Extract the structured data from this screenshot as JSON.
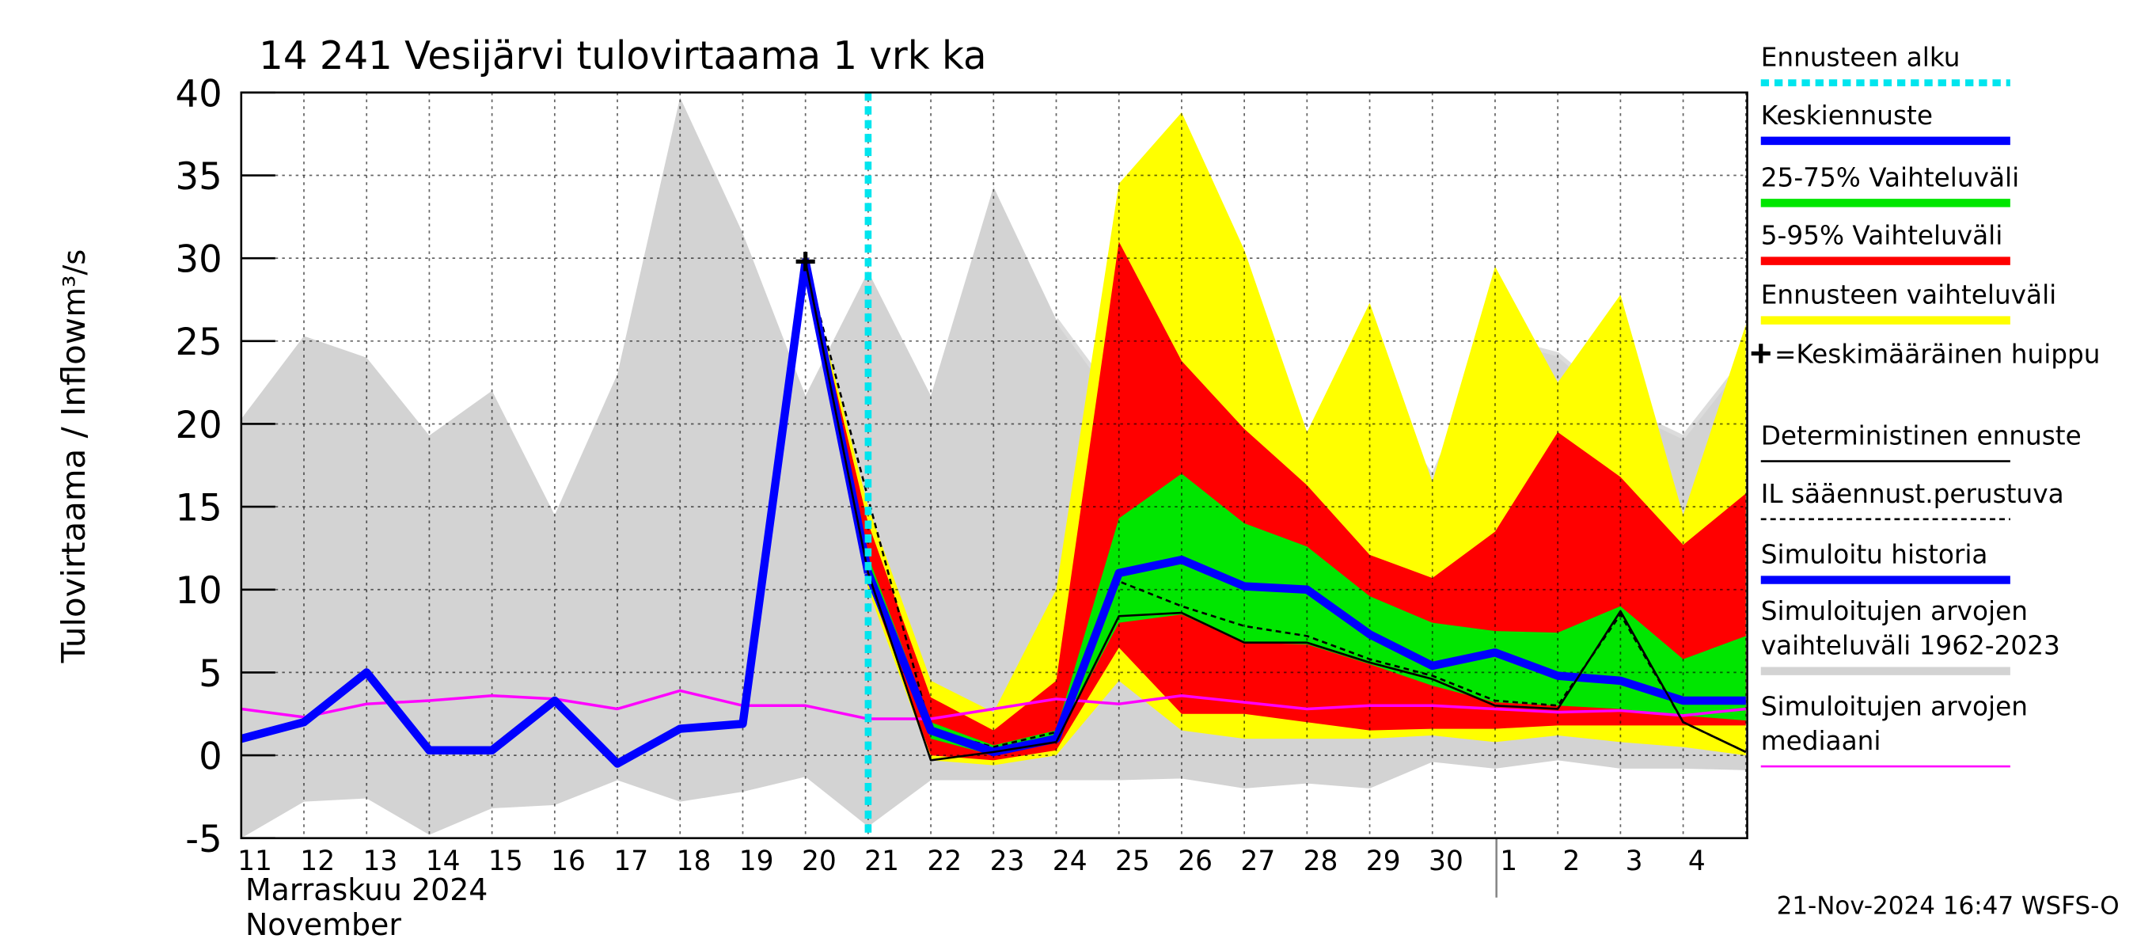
{
  "chart_data": {
    "type": "line",
    "title": "14 241 Vesijärvi tulovirtaama 1 vrk ka",
    "y_label": "Tulovirtaama / Inflow",
    "y_unit": "m³/s",
    "month_labels": [
      "Marraskuu 2024",
      "November"
    ],
    "footer": "21-Nov-2024 16:47 WSFS-O",
    "categories": [
      "11",
      "12",
      "13",
      "14",
      "15",
      "16",
      "17",
      "18",
      "19",
      "20",
      "21",
      "22",
      "23",
      "24",
      "25",
      "26",
      "27",
      "28",
      "29",
      "30",
      "1",
      "2",
      "3",
      "4",
      null
    ],
    "ylim": [
      -5,
      40
    ],
    "yticks": [
      -5,
      0,
      5,
      10,
      15,
      20,
      25,
      30,
      35,
      40
    ],
    "grid": true,
    "forecast_start": 10,
    "bands": [
      {
        "color": "#d3d3d3",
        "upper": [
          20.3,
          25.3,
          24,
          19.3,
          22,
          14.5,
          23,
          39.7,
          31.5,
          21.7,
          29.2,
          21.7,
          34.3,
          26.3,
          21.2,
          21.6,
          16.3,
          14.5,
          22.5,
          16.8,
          25.2,
          24.2,
          21,
          19.2,
          24
        ],
        "lower": [
          -5,
          -2.8,
          -2.6,
          -4.8,
          -3.2,
          -3,
          -1.5,
          -2.8,
          -2.2,
          -1.3,
          -4.3,
          -1.5,
          -1.5,
          -1.5,
          -1.5,
          -1.4,
          -2,
          -1.7,
          -2,
          -0.4,
          -0.8,
          -0.3,
          -0.8,
          -0.8,
          -0.9
        ]
      },
      {
        "color": "#ffff00",
        "upper": [
          null,
          null,
          null,
          null,
          null,
          null,
          null,
          null,
          null,
          29.8,
          15,
          4.5,
          2.6,
          10,
          34.5,
          38.8,
          30.5,
          19.5,
          27.3,
          16.5,
          29.5,
          22.5,
          27.8,
          14.5,
          26
        ],
        "lower": [
          null,
          null,
          null,
          null,
          null,
          null,
          null,
          null,
          null,
          29.8,
          10,
          -0.3,
          -0.6,
          0,
          4.5,
          1.5,
          1,
          1,
          1,
          1.2,
          0.8,
          1.2,
          0.8,
          0.5,
          0
        ]
      },
      {
        "color": "#ff0000",
        "upper": [
          null,
          null,
          null,
          null,
          null,
          null,
          null,
          null,
          null,
          29.8,
          14,
          3.5,
          1.5,
          4.5,
          31,
          23.8,
          19.7,
          16.3,
          12.1,
          10.7,
          13.5,
          19.5,
          16.8,
          12.7,
          15.8
        ],
        "lower": [
          null,
          null,
          null,
          null,
          null,
          null,
          null,
          null,
          null,
          29.8,
          10.5,
          0,
          -0.3,
          0.3,
          6.5,
          2.5,
          2.5,
          2,
          1.5,
          1.6,
          1.6,
          1.8,
          1.8,
          1.8,
          1.8
        ]
      },
      {
        "color": "#00e600",
        "upper": [
          null,
          null,
          null,
          null,
          null,
          null,
          null,
          null,
          null,
          29.8,
          12,
          2,
          0.6,
          1.5,
          14.3,
          17,
          14,
          12.6,
          9.6,
          8,
          7.5,
          7.4,
          9,
          5.8,
          7.2
        ],
        "lower": [
          null,
          null,
          null,
          null,
          null,
          null,
          null,
          null,
          null,
          29.8,
          11,
          1,
          0,
          0.9,
          8,
          8.5,
          6.8,
          6.7,
          5.5,
          4.2,
          3.2,
          3,
          2.8,
          2.4,
          2.1
        ]
      }
    ],
    "series": [
      {
        "color": "#ff00ff",
        "width": 2,
        "dash": "none",
        "values": [
          2.8,
          2.3,
          3.1,
          3.3,
          3.6,
          3.4,
          2.8,
          3.9,
          3.0,
          3.0,
          2.2,
          2.2,
          2.8,
          3.4,
          3.1,
          3.6,
          3.2,
          2.8,
          3.0,
          3.0,
          2.8,
          2.6,
          2.7,
          2.4,
          2.8
        ]
      },
      {
        "color": "#000000",
        "width": 1.5,
        "dash": "4,3",
        "values": [
          null,
          null,
          null,
          null,
          null,
          null,
          null,
          null,
          null,
          29.8,
          15.5,
          1.5,
          0.5,
          1.4,
          10.5,
          9,
          7.8,
          7.2,
          5.8,
          4.8,
          3.3,
          3,
          8.5,
          2,
          0.2
        ]
      },
      {
        "color": "#0000ff",
        "width": 6,
        "dash": "none",
        "values": [
          1,
          2,
          5,
          0.3,
          0.3,
          3.3,
          -0.5,
          1.6,
          1.9,
          29.8,
          11,
          null,
          null,
          null,
          null,
          null,
          null,
          null,
          null,
          null,
          null,
          null,
          null,
          null,
          null
        ]
      },
      {
        "color": "#0000ff",
        "width": 6,
        "dash": "none",
        "values": [
          null,
          null,
          null,
          null,
          null,
          null,
          null,
          null,
          null,
          null,
          11,
          1.5,
          0.2,
          1.0,
          11,
          11.8,
          10.2,
          10,
          7.3,
          5.4,
          6.2,
          4.8,
          4.5,
          3.3,
          3.3
        ]
      },
      {
        "color": "#000000",
        "width": 1.5,
        "dash": "none",
        "values": [
          null,
          null,
          null,
          null,
          null,
          null,
          null,
          null,
          null,
          29.8,
          11,
          -0.3,
          0.2,
          0.8,
          8.4,
          8.6,
          6.8,
          6.8,
          5.6,
          4.6,
          3,
          2.8,
          8.7,
          2,
          0.2
        ]
      }
    ],
    "peak": {
      "index": 9,
      "value": 29.8
    },
    "legend": [
      {
        "lines": [
          "Ennusteen alku"
        ],
        "color": "#00e5ee",
        "style": "dotted"
      },
      {
        "lines": [
          "Keskiennuste"
        ],
        "color": "#0000ff",
        "style": "thick"
      },
      {
        "lines": [
          "25-75% Vaihteluväli"
        ],
        "color": "#00e600",
        "style": "thick"
      },
      {
        "lines": [
          "5-95% Vaihteluväli"
        ],
        "color": "#ff0000",
        "style": "thick"
      },
      {
        "lines": [
          "Ennusteen vaihteluväli"
        ],
        "color": "#ffff00",
        "style": "thick"
      },
      {
        "lines": [
          "=Keskimääräinen huippu"
        ],
        "color": "#000000",
        "style": "plus"
      },
      {
        "lines": [
          "Deterministinen ennuste"
        ],
        "color": "#000000",
        "style": "thin"
      },
      {
        "lines": [
          "IL sääennust.perustuva"
        ],
        "color": "#000000",
        "style": "dashed"
      },
      {
        "lines": [
          "Simuloitu historia"
        ],
        "color": "#0000ff",
        "style": "thick"
      },
      {
        "lines": [
          "Simuloitujen arvojen",
          "vaihteluväli 1962-2023"
        ],
        "color": "#d3d3d3",
        "style": "thick"
      },
      {
        "lines": [
          "Simuloitujen arvojen",
          "mediaani"
        ],
        "color": "#ff00ff",
        "style": "thin"
      }
    ]
  }
}
